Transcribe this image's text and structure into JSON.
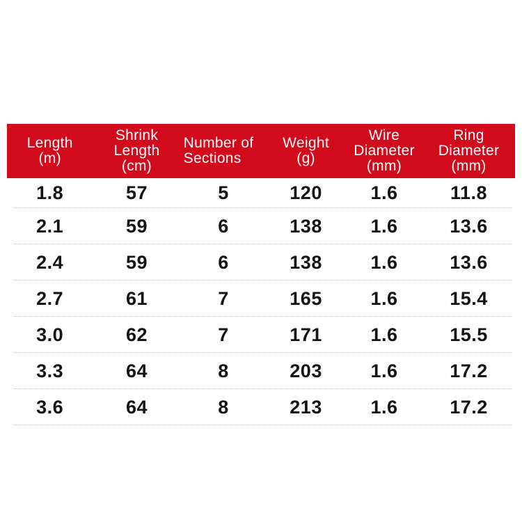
{
  "page": {
    "background": "#ffffff"
  },
  "table": {
    "header_bg": "#d10a1c",
    "header_text_color": "#ffffff",
    "data_text_color": "#141414",
    "separator_color": "#c5c5c5",
    "columns": [
      {
        "id": "length",
        "label": "Length\n(m)"
      },
      {
        "id": "shrink_length",
        "label": "Shrink\nLength\n(cm)"
      },
      {
        "id": "sections",
        "label": "Number of\nSections"
      },
      {
        "id": "weight",
        "label": "Weight\n(g)"
      },
      {
        "id": "wire_diameter",
        "label": "Wire\nDiameter\n(mm)"
      },
      {
        "id": "ring_diameter",
        "label": "Ring\nDiameter\n(mm)"
      }
    ],
    "rows": [
      [
        "1.8",
        "57",
        "5",
        "120",
        "1.6",
        "11.8"
      ],
      [
        "2.1",
        "59",
        "6",
        "138",
        "1.6",
        "13.6"
      ],
      [
        "2.4",
        "59",
        "6",
        "138",
        "1.6",
        "13.6"
      ],
      [
        "2.7",
        "61",
        "7",
        "165",
        "1.6",
        "15.4"
      ],
      [
        "3.0",
        "62",
        "7",
        "171",
        "1.6",
        "15.5"
      ],
      [
        "3.3",
        "64",
        "8",
        "203",
        "1.6",
        "17.2"
      ],
      [
        "3.6",
        "64",
        "8",
        "213",
        "1.6",
        "17.2"
      ]
    ]
  },
  "chart_data": {
    "type": "table",
    "columns": [
      "Length (m)",
      "Shrink Length (cm)",
      "Number of Sections",
      "Weight (g)",
      "Wire Diameter (mm)",
      "Ring Diameter (mm)"
    ],
    "rows": [
      [
        1.8,
        57,
        5,
        120,
        1.6,
        11.8
      ],
      [
        2.1,
        59,
        6,
        138,
        1.6,
        13.6
      ],
      [
        2.4,
        59,
        6,
        138,
        1.6,
        13.6
      ],
      [
        2.7,
        61,
        7,
        165,
        1.6,
        15.4
      ],
      [
        3.0,
        62,
        7,
        171,
        1.6,
        15.5
      ],
      [
        3.3,
        64,
        8,
        203,
        1.6,
        17.2
      ],
      [
        3.6,
        64,
        8,
        213,
        1.6,
        17.2
      ]
    ],
    "title": "",
    "layout_hints": {
      "header_background": "#d10a1c",
      "row_separators": "dotted",
      "grid": "horizontal-only"
    }
  }
}
